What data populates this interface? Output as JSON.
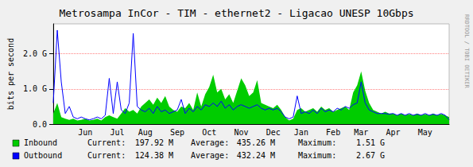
{
  "chart_data": {
    "type": "line",
    "title": "Metrosampa InCor - TIM - ethernet2 - Ligacao UNESP 10Gbps",
    "y_label": "bits per second",
    "side_text": "RRDTOOL / TOBI OETIKER",
    "categories": [
      null,
      null,
      null,
      null,
      null,
      null,
      null,
      null,
      "Jun",
      null,
      null,
      null,
      null,
      null,
      null,
      null,
      "Jul",
      null,
      null,
      null,
      null,
      null,
      null,
      "Aug",
      null,
      null,
      null,
      null,
      null,
      null,
      null,
      "Sep",
      null,
      null,
      null,
      null,
      null,
      null,
      null,
      "Oct",
      null,
      null,
      null,
      null,
      null,
      null,
      null,
      "Nov",
      null,
      null,
      null,
      null,
      null,
      null,
      null,
      "Dec",
      null,
      null,
      null,
      null,
      null,
      null,
      "Jan",
      null,
      null,
      null,
      null,
      null,
      null,
      null,
      "Feb",
      null,
      null,
      null,
      null,
      null,
      null,
      "Mar",
      null,
      null,
      null,
      null,
      null,
      null,
      null,
      "Apr",
      null,
      null,
      null,
      null,
      null,
      null,
      null,
      "May",
      null,
      null,
      null,
      null,
      null,
      null
    ],
    "series": [
      {
        "name": "Inbound",
        "type": "area",
        "color": "#00CC00",
        "stats": [
          "197.92 M",
          "435.26 M",
          "1.51 G"
        ],
        "values": [
          0.3,
          0.6,
          0.2,
          0.15,
          0.12,
          0.15,
          0.1,
          0.12,
          0.15,
          0.1,
          0.12,
          0.15,
          0.1,
          0.2,
          0.25,
          0.2,
          0.15,
          0.3,
          0.45,
          0.35,
          0.4,
          0.3,
          0.5,
          0.6,
          0.7,
          0.55,
          0.75,
          0.6,
          0.8,
          0.5,
          0.4,
          0.35,
          0.5,
          0.45,
          0.6,
          0.4,
          0.9,
          0.5,
          0.85,
          1.05,
          1.4,
          0.9,
          1.0,
          0.7,
          0.85,
          0.6,
          0.95,
          1.3,
          1.1,
          0.8,
          0.9,
          1.25,
          0.6,
          0.55,
          0.5,
          0.45,
          0.55,
          0.4,
          0.2,
          0.1,
          0.15,
          0.4,
          0.45,
          0.35,
          0.4,
          0.45,
          0.35,
          0.5,
          0.4,
          0.45,
          0.35,
          0.4,
          0.45,
          0.5,
          0.4,
          0.9,
          1.1,
          1.5,
          0.95,
          0.6,
          0.4,
          0.35,
          0.3,
          0.35,
          0.3,
          0.3,
          0.25,
          0.3,
          0.25,
          0.28,
          0.25,
          0.3,
          0.25,
          0.28,
          0.25,
          0.3,
          0.25,
          0.28,
          0.25,
          0.198
        ]
      },
      {
        "name": "Outbound",
        "type": "line",
        "color": "#0000FF",
        "stats": [
          "124.38 M",
          "432.24 M",
          "2.67 G"
        ],
        "values": [
          0.6,
          2.67,
          1.2,
          0.3,
          0.5,
          0.2,
          0.15,
          0.2,
          0.15,
          0.12,
          0.15,
          0.2,
          0.15,
          0.25,
          1.3,
          0.3,
          1.2,
          0.4,
          0.3,
          0.6,
          2.58,
          0.5,
          0.4,
          0.35,
          0.45,
          0.3,
          0.5,
          0.35,
          0.4,
          0.3,
          0.35,
          0.4,
          0.7,
          0.3,
          0.45,
          0.35,
          0.5,
          0.4,
          0.55,
          0.5,
          0.6,
          0.5,
          0.65,
          0.45,
          0.55,
          0.4,
          0.5,
          0.55,
          0.5,
          0.45,
          0.5,
          0.55,
          0.45,
          0.4,
          0.45,
          0.4,
          0.45,
          0.35,
          0.2,
          0.15,
          0.2,
          0.8,
          0.3,
          0.35,
          0.3,
          0.4,
          0.3,
          0.45,
          0.35,
          0.4,
          0.35,
          0.45,
          0.4,
          0.5,
          0.45,
          0.55,
          0.6,
          1.2,
          0.6,
          0.4,
          0.35,
          0.3,
          0.3,
          0.3,
          0.28,
          0.3,
          0.25,
          0.3,
          0.25,
          0.3,
          0.25,
          0.28,
          0.25,
          0.3,
          0.25,
          0.28,
          0.25,
          0.3,
          0.25,
          0.124
        ]
      }
    ],
    "stats_labels": [
      "Current:",
      "Average:",
      "Maximum:"
    ],
    "ylim": [
      0,
      2.85
    ],
    "yticks": [
      {
        "value": 0,
        "label": "0.0"
      },
      {
        "value": 1,
        "label": "1.0 G"
      },
      {
        "value": 2,
        "label": "2.0 G"
      }
    ],
    "grid": true,
    "legend": "bottom left"
  }
}
